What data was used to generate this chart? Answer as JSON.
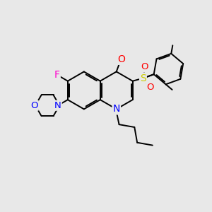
{
  "bg": "#e8e8e8",
  "bond_color": "#000000",
  "colors": {
    "F": "#ff00cc",
    "N": "#0000ff",
    "O": "#ff0000",
    "S": "#cccc00"
  }
}
